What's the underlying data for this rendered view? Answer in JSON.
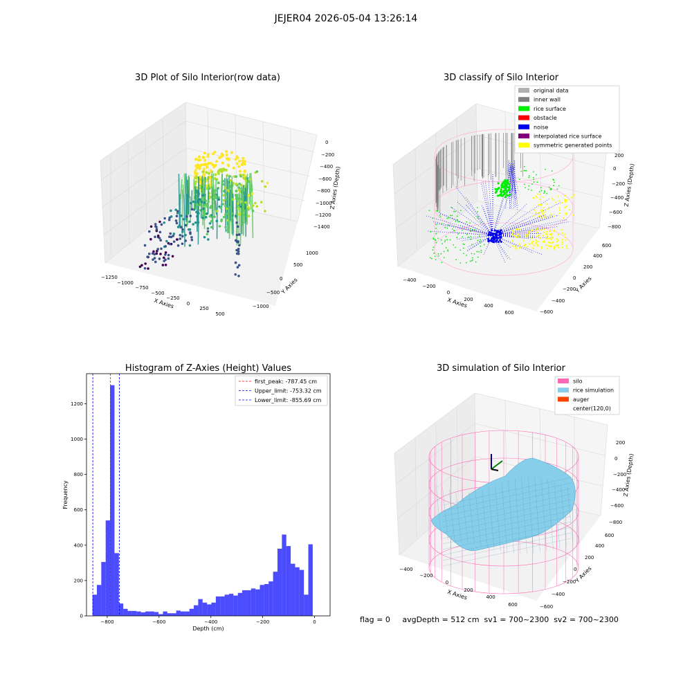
{
  "suptitle": "JEJER04 2026-05-04 13:26:14",
  "footer": "flag = 0     avgDepth = 512 cm  sv1 = 700~2300  sv2 = 700~2300",
  "chart_data": [
    {
      "type": "scatter",
      "title": "3D Plot of Silo Interior(row data)",
      "xlabel": "X Axies",
      "ylabel": "Y Axies",
      "zlabel": "Z Axies (Depth)",
      "xticks": [
        "−1250",
        "−1000",
        "−750",
        "−500",
        "−250",
        "0",
        "250",
        "500"
      ],
      "yticks": [
        "−1000",
        "−500",
        "0",
        "500",
        "1000"
      ],
      "zticks": [
        "0",
        "−200",
        "−400",
        "−600",
        "−800",
        "−1000",
        "−1200",
        "−1400"
      ],
      "colormap": "viridis"
    },
    {
      "type": "scatter",
      "title": "3D classify of Silo Interior",
      "xlabel": "X Axies",
      "ylabel": "Y Axies",
      "zlabel": "Z Axies (Depth)",
      "xticks": [
        "−400",
        "−200",
        "0",
        "200",
        "400",
        "600"
      ],
      "yticks": [
        "−600",
        "−400",
        "−200",
        "0",
        "200",
        "400",
        "600"
      ],
      "zticks": [
        "200",
        "0",
        "−200",
        "−400",
        "−600",
        "−800"
      ],
      "legend": [
        {
          "label": "original data",
          "color": "#b0b0b0"
        },
        {
          "label": "inner wall",
          "color": "#808080"
        },
        {
          "label": "rice surface",
          "color": "#00ee00"
        },
        {
          "label": "obstacle",
          "color": "#ff0000"
        },
        {
          "label": "noise",
          "color": "#0000ee"
        },
        {
          "label": "interpolated rice surface",
          "color": "#800080"
        },
        {
          "label": "symmetric generated points",
          "color": "#ffff00"
        }
      ]
    },
    {
      "type": "bar",
      "title": "Histogram of Z-Axies (Height) Values",
      "xlabel": "Depth (cm)",
      "ylabel": "Frequency",
      "xlim": [
        -880,
        60
      ],
      "ylim": [
        0,
        1370
      ],
      "xticks": [
        -800,
        -600,
        -400,
        -200,
        0
      ],
      "xtick_labels": [
        "−800",
        "−600",
        "−400",
        "−200",
        "0"
      ],
      "yticks": [
        0,
        200,
        400,
        600,
        800,
        1000,
        1200
      ],
      "bar_color": "#0000ff",
      "bins_start": -857,
      "bin_width": 17,
      "values": [
        120,
        175,
        305,
        540,
        1305,
        355,
        70,
        40,
        28,
        28,
        25,
        20,
        25,
        25,
        22,
        10,
        25,
        15,
        15,
        30,
        25,
        25,
        40,
        60,
        95,
        75,
        65,
        75,
        110,
        110,
        120,
        125,
        115,
        130,
        145,
        145,
        155,
        150,
        175,
        180,
        195,
        250,
        380,
        460,
        395,
        295,
        275,
        260,
        120,
        405
      ],
      "vlines": [
        {
          "label": "first_peak: -787.45 cm",
          "x": -787.45,
          "color": "#ff0000"
        },
        {
          "label": "Upper_limit: -753.32 cm",
          "x": -753.32,
          "color": "#0000ff"
        },
        {
          "label": "Lower_limit: -855.69 cm",
          "x": -855.69,
          "color": "#0000ff"
        }
      ]
    },
    {
      "type": "area",
      "title": "3D simulation of Silo Interior",
      "xlabel": "X Axies",
      "ylabel": "Y Axies",
      "zlabel": "Z Axies (Depth)",
      "xticks": [
        "−400",
        "−200",
        "0",
        "200",
        "400",
        "600"
      ],
      "yticks": [
        "−600",
        "−400",
        "−200",
        "0",
        "200",
        "400",
        "600"
      ],
      "zticks": [
        "200",
        "0",
        "−200",
        "−400",
        "−600",
        "−800"
      ],
      "legend": [
        {
          "label": "silo",
          "color": "#ff69b4"
        },
        {
          "label": "rice simulation",
          "color": "#87ceeb"
        },
        {
          "label": "auger",
          "color": "#ff4500"
        },
        {
          "label": "center(120,0)",
          "color": "#ffffff"
        }
      ]
    }
  ]
}
